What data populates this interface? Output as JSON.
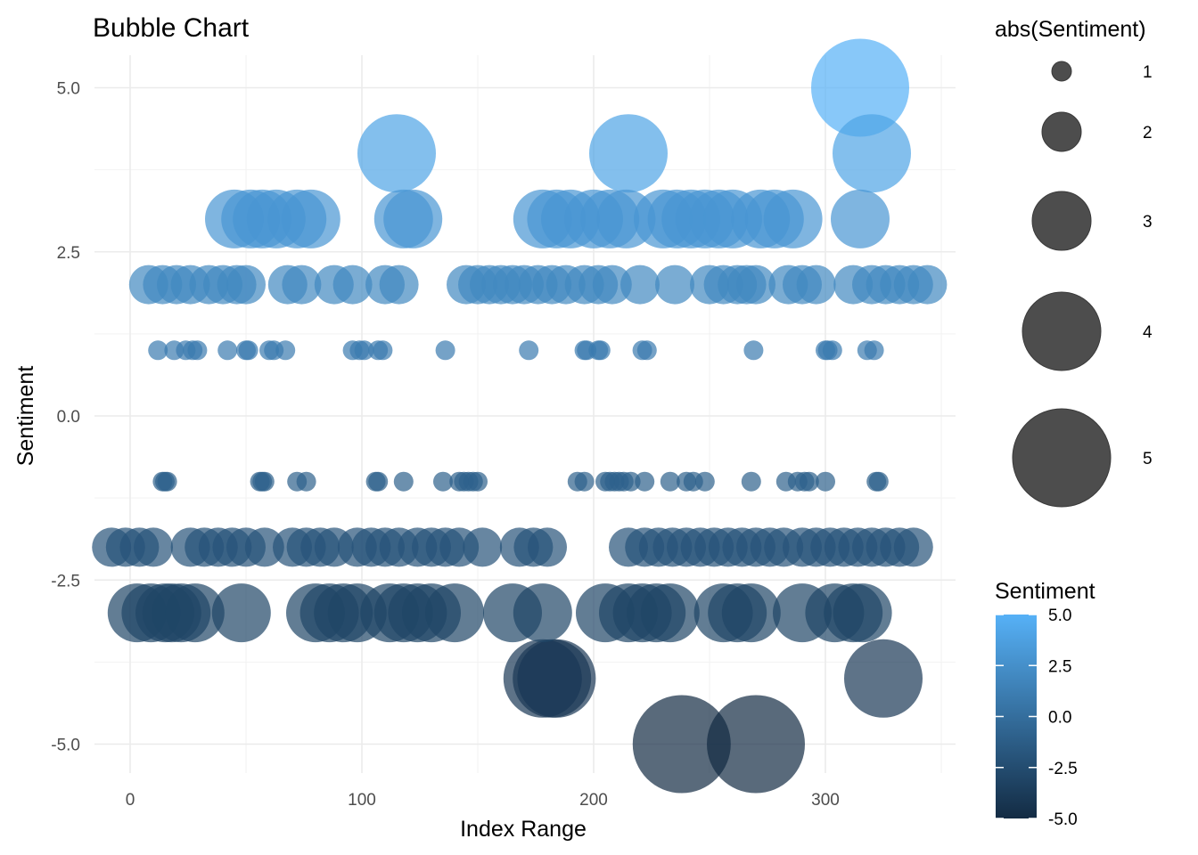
{
  "chart_data": {
    "type": "scatter",
    "title": "Bubble Chart",
    "xlabel": "Index Range",
    "ylabel": "Sentiment",
    "xlim": [
      -15,
      353
    ],
    "ylim": [
      -5.5,
      5.5
    ],
    "x_ticks": [
      0,
      100,
      200,
      300
    ],
    "x_tick_labels": [
      "0",
      "100",
      "200",
      "300"
    ],
    "y_ticks": [
      -5,
      -2.5,
      0,
      2.5,
      5
    ],
    "y_tick_labels": [
      "-5.0",
      "-2.5",
      "0.0",
      "2.5",
      "5.0"
    ],
    "grid": true,
    "size_legend": {
      "title": "abs(Sentiment)",
      "values": [
        1,
        2,
        3,
        4,
        5
      ],
      "labels": [
        "1",
        "2",
        "3",
        "4",
        "5"
      ]
    },
    "color_legend": {
      "title": "Sentiment",
      "range": [
        -5,
        5
      ],
      "ticks": [
        5,
        2.5,
        0,
        -2.5,
        -5
      ],
      "labels": [
        "5.0",
        "2.5",
        "0.0",
        "-2.5",
        "-5.0"
      ],
      "low_color": "#132B43",
      "high_color": "#56B1F7"
    },
    "points": [
      {
        "y": 5,
        "x": [
          315
        ]
      },
      {
        "y": 4,
        "x": [
          115,
          215,
          320
        ]
      },
      {
        "y": 3,
        "x": [
          45,
          52,
          57,
          63,
          72,
          78,
          118,
          122,
          178,
          184,
          190,
          200,
          207,
          214,
          230,
          236,
          242,
          248,
          254,
          260,
          272,
          278,
          286,
          315
        ]
      },
      {
        "y": 2,
        "x": [
          8,
          14,
          20,
          26,
          34,
          40,
          46,
          50,
          68,
          74,
          88,
          96,
          110,
          116,
          145,
          150,
          155,
          160,
          165,
          170,
          176,
          182,
          188,
          196,
          202,
          208,
          220,
          235,
          250,
          256,
          262,
          266,
          270,
          284,
          290,
          296,
          312,
          320,
          326,
          332,
          338,
          344
        ]
      },
      {
        "y": 1,
        "x": [
          12,
          19,
          24,
          27,
          29,
          42,
          50,
          51,
          60,
          62,
          67,
          96,
          99,
          101,
          107,
          109,
          136,
          172,
          196,
          197,
          202,
          203,
          221,
          223,
          269,
          300,
          301,
          303,
          318,
          321
        ]
      },
      {
        "y": -1,
        "x": [
          14,
          15,
          16,
          56,
          57,
          58,
          72,
          76,
          106,
          107,
          118,
          135,
          142,
          144,
          146,
          148,
          150,
          193,
          196,
          205,
          207,
          209,
          211,
          213,
          216,
          222,
          233,
          240,
          243,
          248,
          268,
          283,
          288,
          291,
          293,
          300,
          322,
          323
        ]
      },
      {
        "y": -2,
        "x": [
          -8,
          -2,
          4,
          10,
          26,
          32,
          38,
          44,
          50,
          58,
          70,
          76,
          82,
          88,
          98,
          104,
          110,
          116,
          124,
          130,
          136,
          142,
          152,
          168,
          174,
          180,
          215,
          222,
          228,
          234,
          240,
          246,
          252,
          258,
          264,
          270,
          276,
          282,
          290,
          296,
          302,
          308,
          314,
          320,
          326,
          332,
          338
        ]
      },
      {
        "y": -3,
        "x": [
          3,
          9,
          15,
          18,
          22,
          28,
          48,
          80,
          86,
          92,
          98,
          112,
          118,
          124,
          130,
          140,
          165,
          178,
          205,
          215,
          221,
          227,
          233,
          256,
          262,
          268,
          290,
          304,
          312,
          316
        ]
      },
      {
        "y": -4,
        "x": [
          178,
          182,
          184,
          325
        ]
      },
      {
        "y": -5,
        "x": [
          238,
          270
        ]
      }
    ]
  }
}
